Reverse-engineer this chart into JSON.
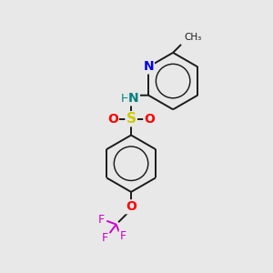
{
  "background_color": "#e8e8e8",
  "bond_color": "#1a1a1a",
  "N_color": "#0000ee",
  "NH_color": "#008080",
  "S_color": "#cccc00",
  "O_color": "#ff0000",
  "F_color": "#cc00cc",
  "figsize": [
    3.0,
    3.0
  ],
  "dpi": 100,
  "xlim": [
    0,
    10
  ],
  "ylim": [
    0,
    10
  ]
}
